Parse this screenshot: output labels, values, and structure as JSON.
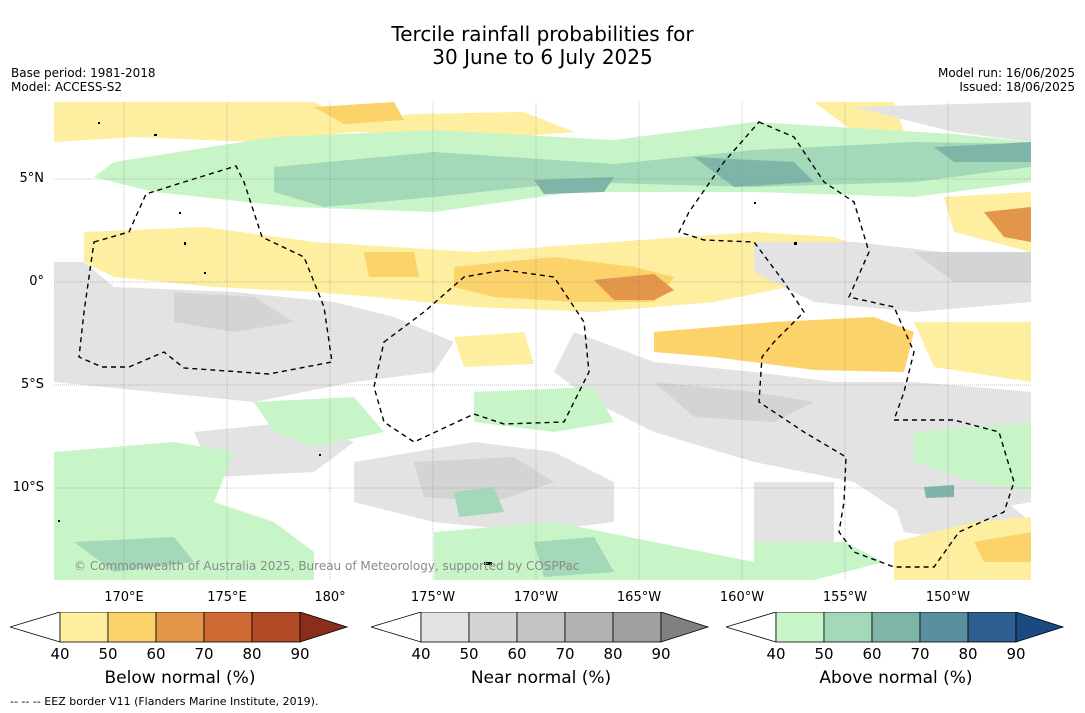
{
  "title_line1": "Tercile rainfall probabilities for",
  "title_line2": "30 June to 6 July 2025",
  "base_period": "Base period: 1981-2018",
  "model": "Model: ACCESS-S2",
  "model_run": "Model run: 16/06/2025",
  "issued": "Issued: 18/06/2025",
  "lat_labels": [
    "5°N",
    "0°",
    "5°S",
    "10°S"
  ],
  "lon_labels": [
    "170°E",
    "175°E",
    "180°",
    "175°W",
    "170°W",
    "165°W",
    "160°W",
    "155°W",
    "150°W"
  ],
  "copyright": "© Commonwealth of Australia 2025, Bureau of Meteorology, supported by COSPPac",
  "colorbars": [
    {
      "label": "Below normal (%)",
      "ticks": [
        "40",
        "50",
        "60",
        "70",
        "80",
        "90"
      ],
      "colors": [
        "#fdeea0",
        "#fcd26a",
        "#e3964a",
        "#cf6a35",
        "#b04a27",
        "#8a2e1b"
      ]
    },
    {
      "label": "Near normal (%)",
      "ticks": [
        "40",
        "50",
        "60",
        "70",
        "80",
        "90"
      ],
      "colors": [
        "#e3e3e3",
        "#d4d4d4",
        "#c4c4c4",
        "#b2b2b2",
        "#a0a0a0",
        "#808080"
      ]
    },
    {
      "label": "Above normal (%)",
      "ticks": [
        "40",
        "50",
        "60",
        "70",
        "80",
        "90"
      ],
      "colors": [
        "#c8f5c8",
        "#a3d9b8",
        "#7fb5a8",
        "#5a8fa0",
        "#2f5e92",
        "#1a4a80"
      ]
    }
  ],
  "footer": "--  --  -- EEZ border V11 (Flanders Marine Institute, 2019).",
  "map_colors": {
    "ocean": "#ffffff",
    "below_40": "#fdeea0",
    "below_50": "#fcd26a",
    "below_60": "#e3964a",
    "near_40": "#e3e3e3",
    "near_50": "#d4d4d4",
    "above_40": "#c8f5c8",
    "above_50": "#a3d9b8",
    "above_60": "#7fb5a8"
  }
}
